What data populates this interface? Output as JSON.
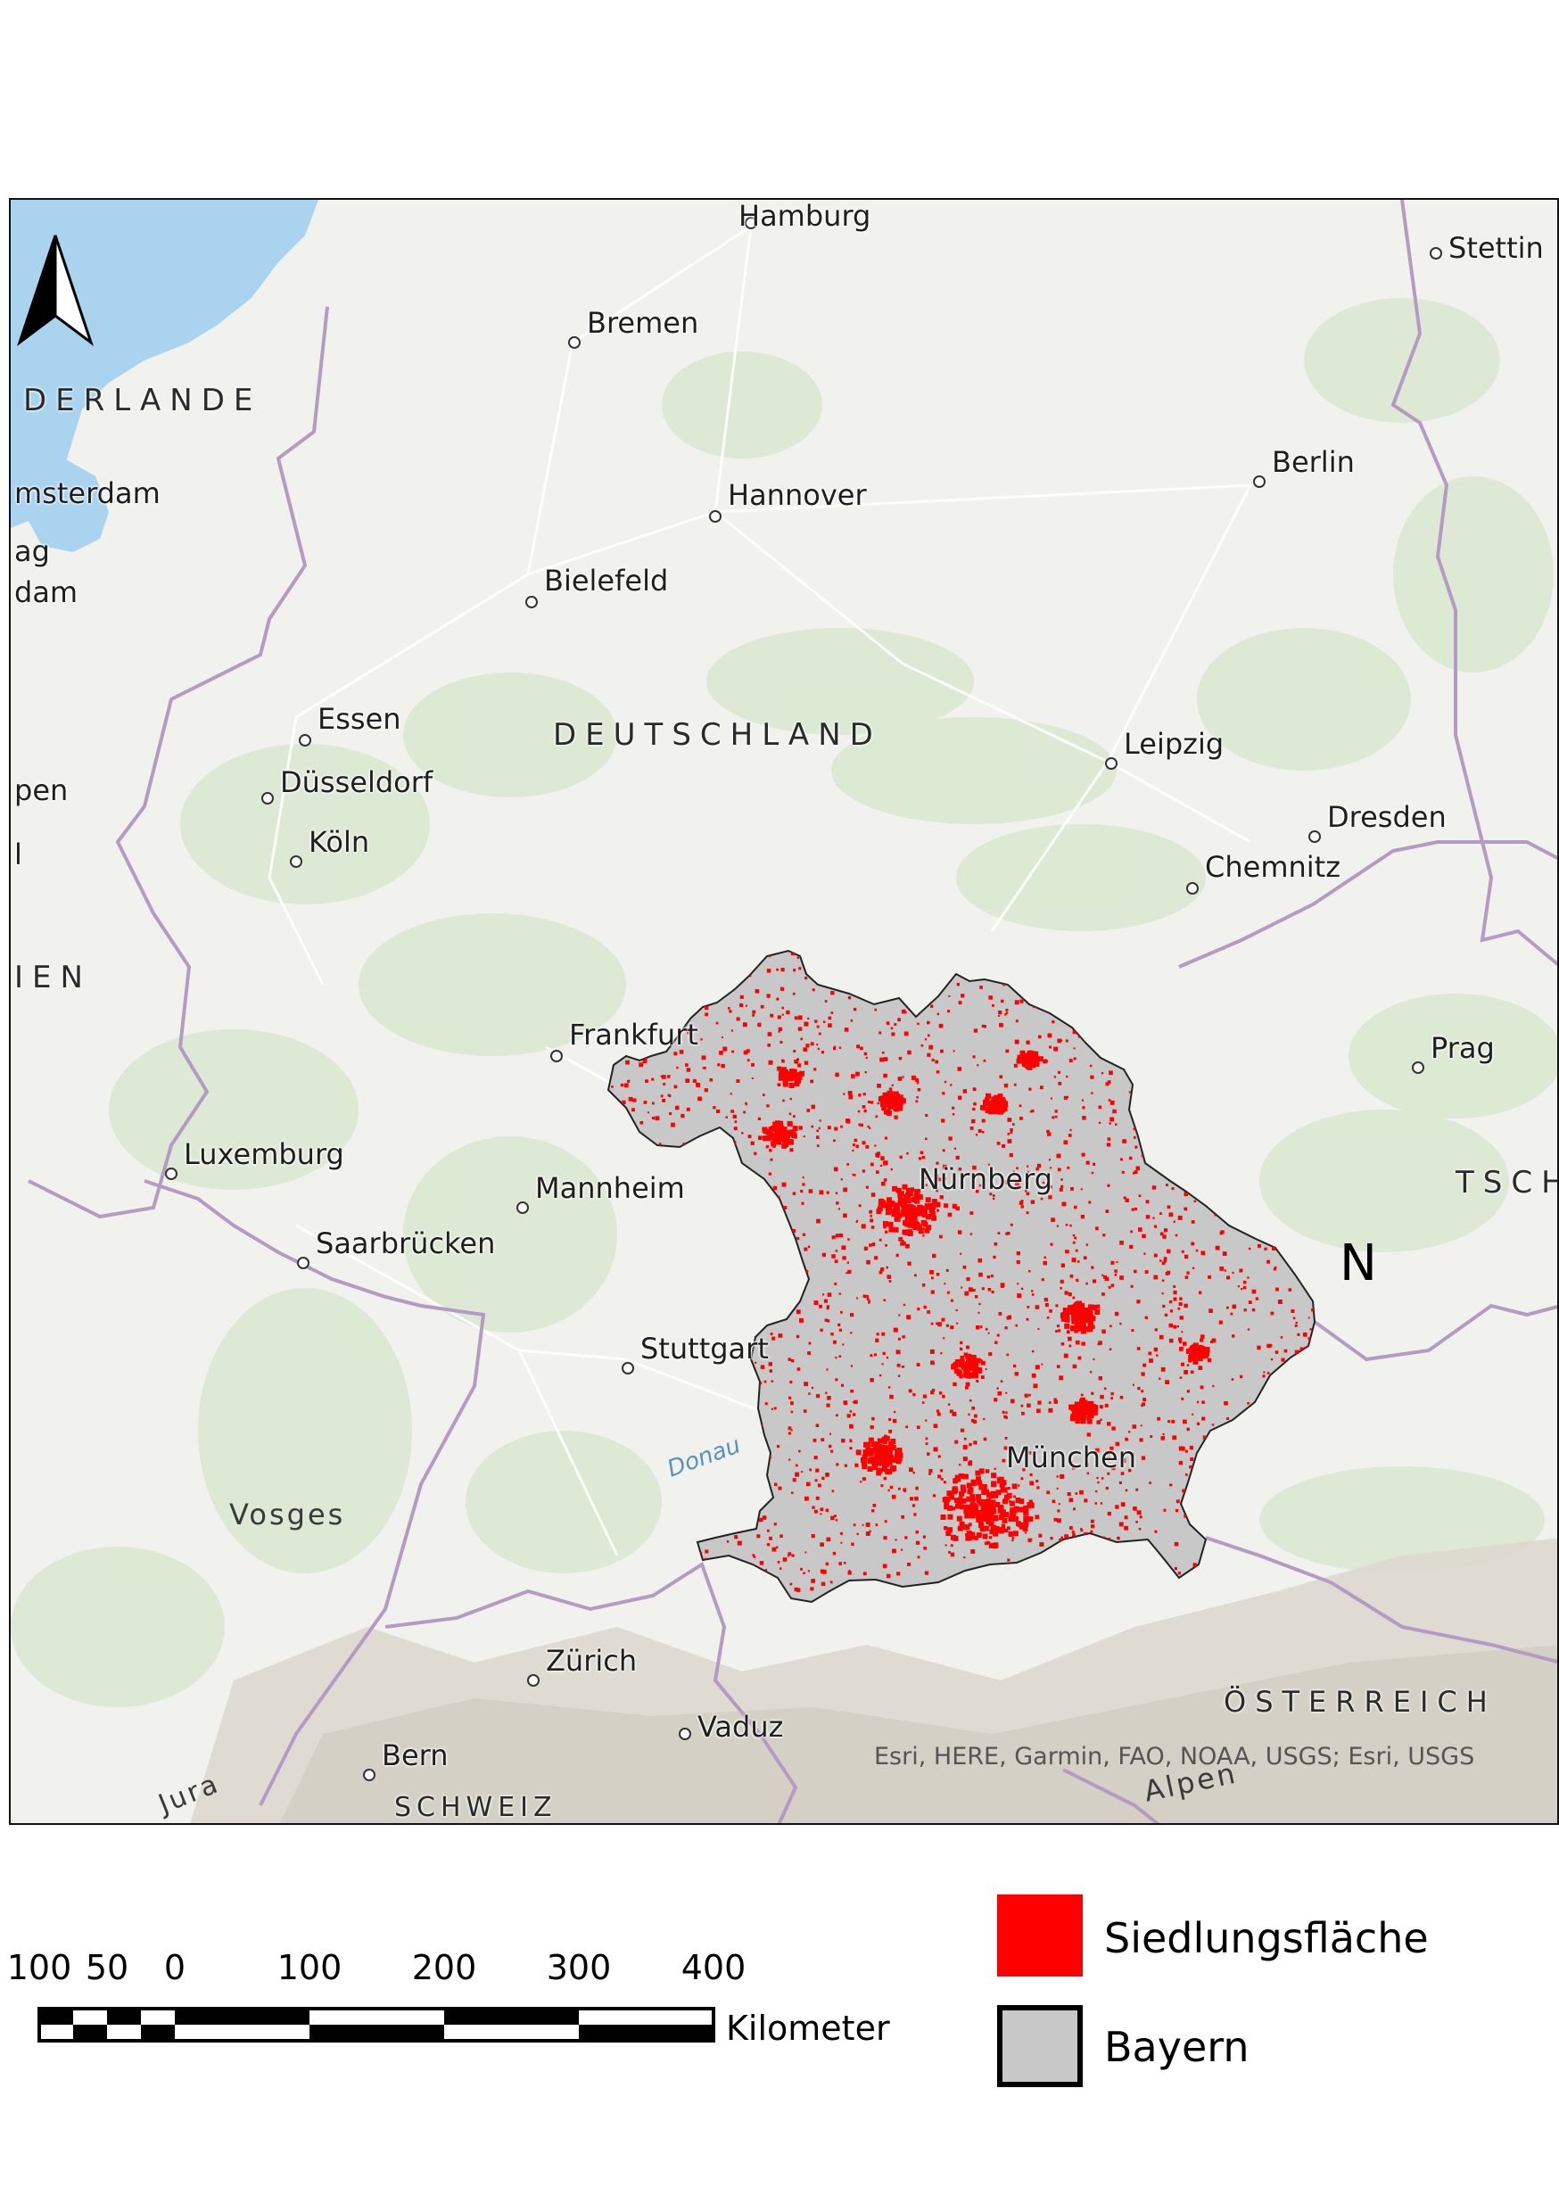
{
  "map": {
    "cities": [
      {
        "name": "Hamburg"
      },
      {
        "name": "Stettin"
      },
      {
        "name": "Bremen"
      },
      {
        "name": "msterdam"
      },
      {
        "name": "Hannover"
      },
      {
        "name": "Berlin"
      },
      {
        "name": "ag"
      },
      {
        "name": "dam"
      },
      {
        "name": "Bielefeld"
      },
      {
        "name": "Essen"
      },
      {
        "name": "Düsseldorf"
      },
      {
        "name": "pen"
      },
      {
        "name": "Leipzig"
      },
      {
        "name": "Dresden"
      },
      {
        "name": "Köln"
      },
      {
        "name": "Chemnitz"
      },
      {
        "name": "l"
      },
      {
        "name": "Frankfurt"
      },
      {
        "name": "Prag"
      },
      {
        "name": "Luxemburg"
      },
      {
        "name": "Mannheim"
      },
      {
        "name": "Nürnberg"
      },
      {
        "name": "Saarbrücken"
      },
      {
        "name": "Stuttgart"
      },
      {
        "name": "München"
      },
      {
        "name": "Zürich"
      },
      {
        "name": "Vaduz"
      },
      {
        "name": "Bern"
      }
    ],
    "countries": [
      "DERLANDE",
      "DEUTSCHLAND",
      "IEN",
      "TSCH",
      "ÖSTERREICH",
      "SCHWEIZ"
    ],
    "regions": [
      "Vosges",
      "Jura",
      "Alpen"
    ],
    "river": "Donau",
    "attribution": "Esri, HERE, Garmin, FAO, NOAA, USGS; Esri, USGS",
    "north_label": "N",
    "colors": {
      "settlement": "#ff0000",
      "bayern_fill": "#c8c8c8",
      "background": "#f1f1ee",
      "water": "#a9d3ef",
      "border": "#b59ac4"
    }
  },
  "scale_bar": {
    "ticks": [
      "100",
      "50",
      "0",
      "100",
      "200",
      "300",
      "400"
    ],
    "unit": "Kilometer"
  },
  "legend": {
    "items": [
      {
        "label": "Siedlungsfläche",
        "color": "#ff0000"
      },
      {
        "label": "Bayern",
        "color": "#c8c8c8"
      }
    ]
  }
}
